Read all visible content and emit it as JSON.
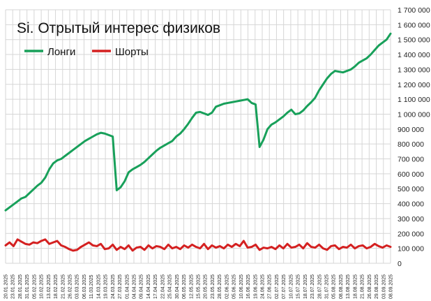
{
  "chart_data": {
    "type": "line",
    "title": "Si. Отрытый интерес физиков",
    "xlabel": "",
    "ylabel": "",
    "ylim": [
      0,
      1700000
    ],
    "y_ticks": [
      0,
      100000,
      200000,
      300000,
      400000,
      500000,
      600000,
      700000,
      800000,
      900000,
      1000000,
      1100000,
      1200000,
      1300000,
      1400000,
      1500000,
      1600000,
      1700000
    ],
    "y_tick_labels": [
      "0",
      "100 000",
      "200 000",
      "300 000",
      "400 000",
      "500 000",
      "600 000",
      "700 000",
      "800 000",
      "900 000",
      "1 000 000",
      "1 100 000",
      "1 200 000",
      "1 300 000",
      "1 400 000",
      "1 500 000",
      "1 600 000",
      "1 700 000"
    ],
    "x_tick_labels": [
      "20.01.2025",
      "23.01.2025",
      "28.01.2025",
      "31.01.2025",
      "05.02.2025",
      "10.02.2025",
      "13.02.2025",
      "18.02.2025",
      "21.02.2025",
      "26.02.2025",
      "03.03.2025",
      "06.03.2025",
      "11.03.2025",
      "14.03.2025",
      "19.03.2025",
      "24.03.2025",
      "27.03.2025",
      "01.04.2025",
      "04.04.2025",
      "09.04.2025",
      "14.04.2025",
      "17.04.2025",
      "22.04.2025",
      "25.04.2025",
      "30.04.2025",
      "06.05.2025",
      "12.05.2025",
      "15.05.2025",
      "20.05.2025",
      "23.05.2025",
      "28.05.2025",
      "02.06.2025",
      "05.06.2025",
      "10.06.2025",
      "16.06.2025",
      "19.06.2025",
      "24.06.2025",
      "27.06.2025",
      "02.07.2025",
      "07.07.2025",
      "10.07.2025",
      "15.07.2025",
      "18.07.2025",
      "23.07.2025",
      "28.07.2025",
      "31.07.2025",
      "05.08.2025",
      "08.08.2025",
      "13.08.2025",
      "18.08.2025",
      "21.08.2025",
      "26.08.2025",
      "29.08.2025",
      "03.09.2025",
      "08.09.2025"
    ],
    "legend_position": "top-left",
    "grid": true,
    "series": [
      {
        "name": "Лонги",
        "color": "#18a05a",
        "values": [
          355000,
          375000,
          395000,
          415000,
          435000,
          445000,
          470000,
          495000,
          520000,
          540000,
          575000,
          630000,
          670000,
          690000,
          700000,
          720000,
          740000,
          760000,
          780000,
          800000,
          820000,
          835000,
          850000,
          865000,
          875000,
          870000,
          860000,
          850000,
          490000,
          510000,
          550000,
          610000,
          630000,
          645000,
          660000,
          680000,
          705000,
          730000,
          755000,
          775000,
          790000,
          805000,
          820000,
          850000,
          870000,
          900000,
          935000,
          975000,
          1010000,
          1015000,
          1005000,
          995000,
          1010000,
          1050000,
          1060000,
          1070000,
          1075000,
          1080000,
          1085000,
          1090000,
          1095000,
          1100000,
          1075000,
          1065000,
          780000,
          830000,
          900000,
          930000,
          945000,
          965000,
          985000,
          1010000,
          1030000,
          1000000,
          1005000,
          1025000,
          1055000,
          1080000,
          1110000,
          1160000,
          1200000,
          1240000,
          1270000,
          1290000,
          1285000,
          1280000,
          1290000,
          1300000,
          1320000,
          1345000,
          1360000,
          1375000,
          1400000,
          1430000,
          1460000,
          1480000,
          1500000,
          1540000
        ]
      },
      {
        "name": "Шорты",
        "color": "#d42020",
        "values": [
          120000,
          140000,
          115000,
          160000,
          145000,
          130000,
          125000,
          140000,
          135000,
          150000,
          160000,
          130000,
          140000,
          150000,
          120000,
          110000,
          95000,
          85000,
          90000,
          110000,
          125000,
          140000,
          120000,
          115000,
          130000,
          95000,
          100000,
          125000,
          90000,
          110000,
          95000,
          120000,
          85000,
          105000,
          110000,
          90000,
          120000,
          100000,
          115000,
          110000,
          95000,
          125000,
          100000,
          110000,
          95000,
          120000,
          105000,
          125000,
          110000,
          100000,
          130000,
          95000,
          120000,
          105000,
          115000,
          100000,
          125000,
          110000,
          130000,
          115000,
          150000,
          105000,
          110000,
          125000,
          90000,
          105000,
          100000,
          110000,
          95000,
          120000,
          100000,
          130000,
          105000,
          110000,
          125000,
          100000,
          135000,
          110000,
          105000,
          125000,
          100000,
          90000,
          115000,
          120000,
          95000,
          110000,
          105000,
          125000,
          100000,
          115000,
          120000,
          100000,
          110000,
          130000,
          115000,
          105000,
          120000,
          110000
        ]
      }
    ]
  }
}
